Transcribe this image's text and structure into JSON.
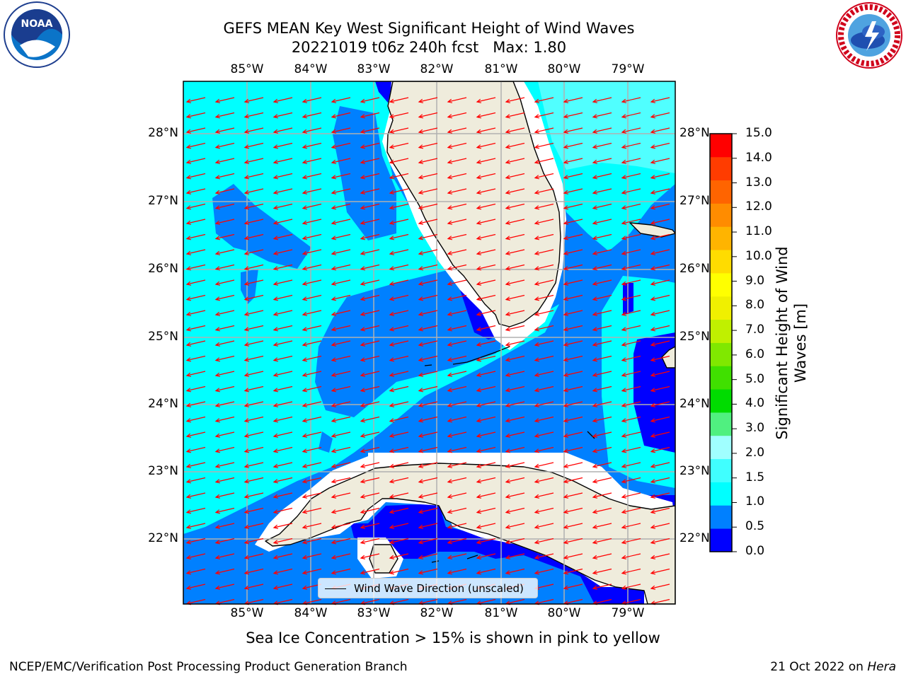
{
  "title": {
    "line1": "GEFS MEAN Key West Significant Height of Wind Waves",
    "line2": "20221019 t06z 240h fcst   Max: 1.80"
  },
  "logos": {
    "left": {
      "icon": "noaa-logo-icon",
      "text": "NOAA"
    },
    "right": {
      "icon": "nws-logo-icon",
      "text": "NATIONAL WEATHER SERVICE"
    }
  },
  "map": {
    "lon_labels": [
      "85°W",
      "84°W",
      "83°W",
      "82°W",
      "81°W",
      "80°W",
      "79°W"
    ],
    "lat_labels": [
      "28°N",
      "27°N",
      "26°N",
      "25°N",
      "24°N",
      "23°N",
      "22°N"
    ],
    "colors": {
      "land": "#efecdc",
      "coast": "#000000",
      "grid": "#b0b0b0",
      "arrows": "#ff0000",
      "no_data": "#ffffff"
    },
    "wind_wave_direction": "toward west-southwest"
  },
  "colorbar": {
    "title": "Significant Height of Wind Waves [m]",
    "ticks": [
      "0.0",
      "0.5",
      "1.0",
      "1.5",
      "2.0",
      "3.0",
      "4.0",
      "5.0",
      "6.0",
      "7.0",
      "8.0",
      "9.0",
      "10.0",
      "11.0",
      "12.0",
      "13.0",
      "14.0",
      "15.0"
    ],
    "colors": [
      "#0000ff",
      "#0080ff",
      "#00ffff",
      "#40ffff",
      "#a0ffff",
      "#50f080",
      "#00dc00",
      "#40e000",
      "#80e800",
      "#c0f000",
      "#f0f000",
      "#ffff00",
      "#ffdc00",
      "#ffb400",
      "#ff8c00",
      "#ff6400",
      "#ff3c00",
      "#ff0000"
    ]
  },
  "legend": {
    "label": "Wind Wave Direction (unscaled)"
  },
  "ice_note": "Sea Ice Concentration > 15% is shown in pink to yellow",
  "footer": {
    "left": "NCEP/EMC/Verification Post Processing Product Generation Branch",
    "right_date": "21 Oct 2022 on",
    "right_host": "Hera"
  }
}
